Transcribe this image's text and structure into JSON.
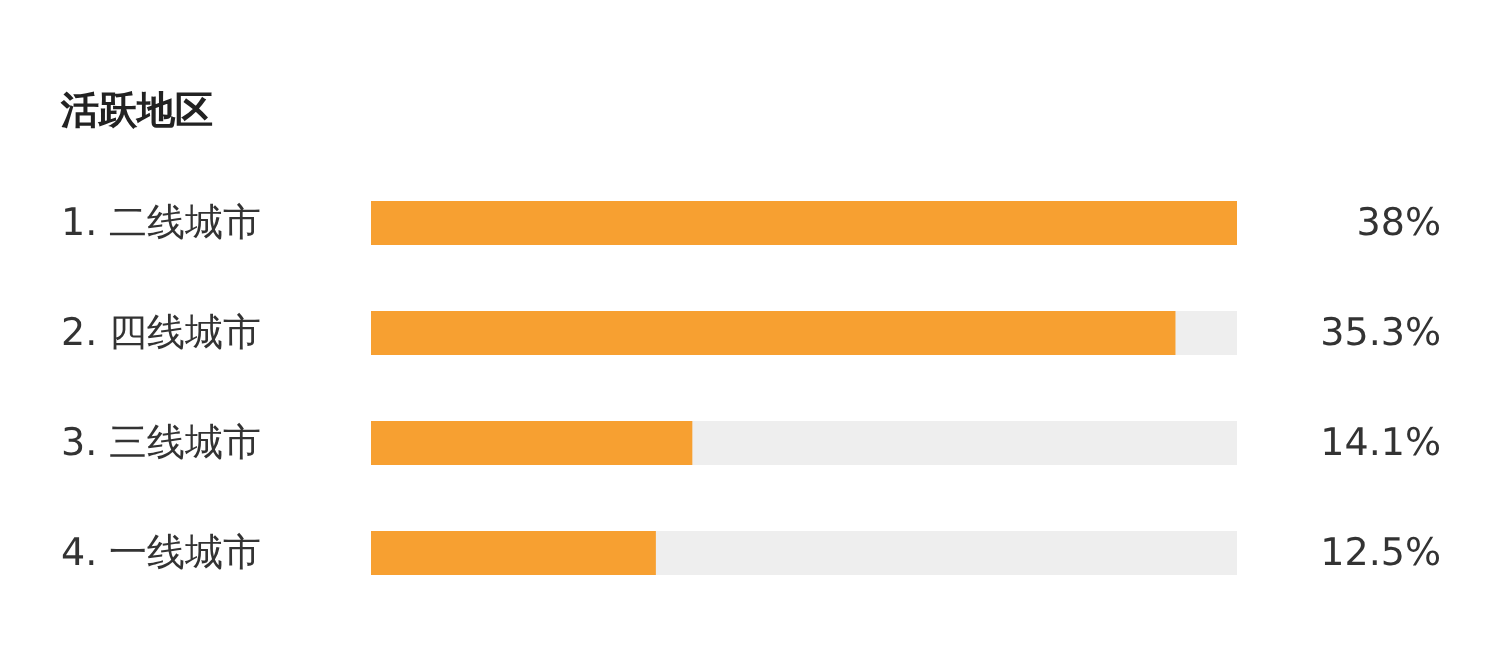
{
  "chart_data": {
    "type": "bar",
    "orientation": "horizontal",
    "title": "活跃地区",
    "categories": [
      "1. 二线城市",
      "2. 四线城市",
      "3. 三线城市",
      "4. 一线城市"
    ],
    "values": [
      38,
      35.3,
      14.1,
      12.5
    ],
    "color": "#f7a031",
    "xlim": [
      0,
      38
    ],
    "value_labels": [
      "38%",
      "35.3%",
      "14.1%",
      "12.5%"
    ]
  }
}
